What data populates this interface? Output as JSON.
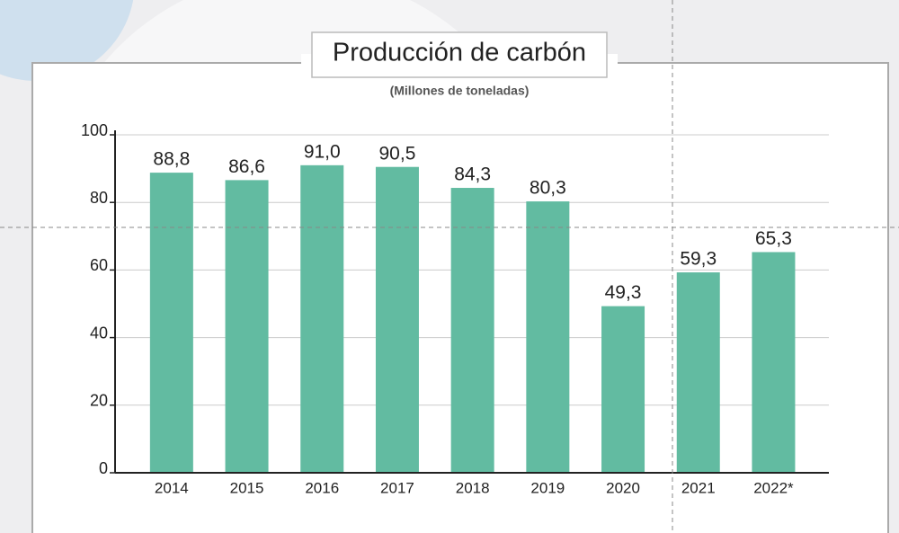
{
  "chart_data": {
    "type": "bar",
    "title": "Producción de carbón",
    "subtitle": "(Millones de toneladas)",
    "categories": [
      "2014",
      "2015",
      "2016",
      "2017",
      "2018",
      "2019",
      "2020",
      "2021",
      "2022*"
    ],
    "values": [
      88.8,
      86.6,
      91.0,
      90.5,
      84.3,
      80.3,
      49.3,
      59.3,
      65.3
    ],
    "value_labels": [
      "88,8",
      "86,6",
      "91,0",
      "90,5",
      "84,3",
      "80,3",
      "49,3",
      "59,3",
      "65,3"
    ],
    "color": "#62bba1",
    "ylim": [
      0,
      100
    ],
    "yticks": [
      0,
      20,
      40,
      60,
      80,
      100
    ],
    "grid": true
  }
}
